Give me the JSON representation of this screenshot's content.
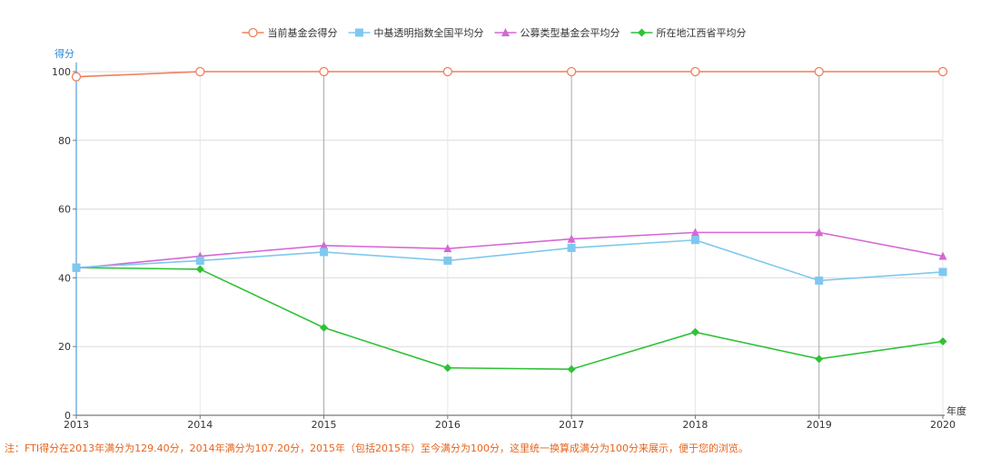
{
  "chart_data": {
    "type": "line",
    "x": [
      "2013",
      "2014",
      "2015",
      "2016",
      "2017",
      "2018",
      "2019",
      "2020"
    ],
    "ylabel": "得分",
    "xlabel": "年度",
    "ylim": [
      0,
      100
    ],
    "yticks": [
      0,
      20,
      40,
      60,
      80,
      100
    ],
    "grid": true,
    "legend_position": "top-center",
    "series": [
      {
        "name": "当前基金会得分",
        "marker": "circle-open",
        "color": "#f07f5c",
        "values": [
          98.5,
          100,
          100,
          100,
          100,
          100,
          100,
          100
        ]
      },
      {
        "name": "中基透明指数全国平均分",
        "marker": "square",
        "color": "#7ec8ef",
        "values": [
          43.0,
          45.0,
          47.5,
          45.0,
          48.7,
          51.0,
          39.2,
          41.7
        ]
      },
      {
        "name": "公募类型基金会平均分",
        "marker": "triangle",
        "color": "#d567d5",
        "values": [
          42.8,
          46.3,
          49.4,
          48.5,
          51.3,
          53.2,
          53.2,
          46.3
        ]
      },
      {
        "name": "所在地江西省平均分",
        "marker": "diamond",
        "color": "#2fc236",
        "values": [
          43.0,
          42.5,
          25.5,
          13.8,
          13.4,
          24.2,
          16.4,
          21.5
        ]
      }
    ],
    "note": "注：FTI得分在2013年满分为129.40分，2014年满分为107.20分，2015年（包括2015年）至今满分为100分，这里统一换算成满分为100分来展示，便于您的浏览。"
  }
}
